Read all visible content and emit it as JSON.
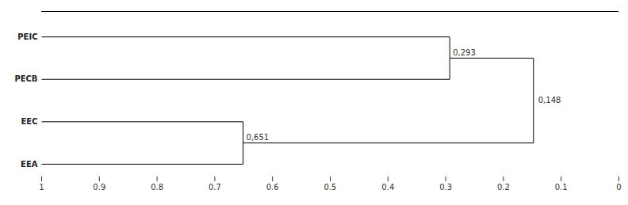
{
  "chart_data": {
    "type": "dendrogram",
    "color": "#000000",
    "xlim": [
      1,
      0
    ],
    "xticks": [
      1,
      0.9,
      0.8,
      0.7,
      0.6,
      0.5,
      0.4,
      0.3,
      0.2,
      0.1,
      0
    ],
    "tree": {
      "value": 0.148,
      "value_label": "0,148",
      "children": [
        {
          "value": 0.651,
          "value_label": "0,651",
          "children": [
            {
              "name": "EEA"
            },
            {
              "name": "EEC"
            }
          ]
        },
        {
          "value": 0.293,
          "value_label": "0,293",
          "children": [
            {
              "name": "PECB"
            },
            {
              "name": "PEIC"
            }
          ]
        }
      ]
    }
  }
}
